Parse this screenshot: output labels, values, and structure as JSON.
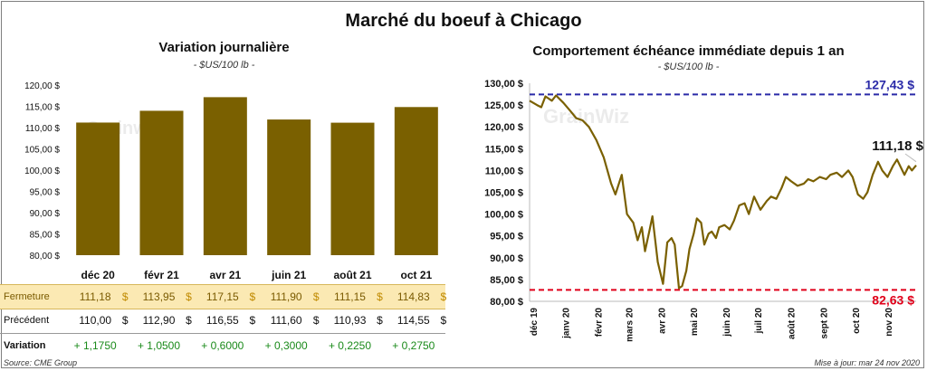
{
  "title": "Marché du boeuf à Chicago",
  "colors": {
    "bar": "#7a6000",
    "line": "#7a6000",
    "high": "#2a2aa8",
    "low": "#e0001a",
    "green": "#1a8a1a"
  },
  "left": {
    "subtitle": "Variation journalière",
    "unit": "- $US/100 lb -",
    "watermark": "Grainwiz",
    "table": {
      "fermeture_label": "Fermeture",
      "precedent_label": "Précédent",
      "variation_label": "Variation",
      "currency": "$",
      "fermeture": [
        "111,18",
        "113,95",
        "117,15",
        "111,90",
        "111,15",
        "114,83"
      ],
      "precedent": [
        "110,00",
        "112,90",
        "116,55",
        "111,60",
        "110,93",
        "114,55"
      ],
      "variation": [
        "+ 1,1750",
        "+ 1,0500",
        "+ 0,6000",
        "+ 0,3000",
        "+ 0,2250",
        "+ 0,2750"
      ]
    }
  },
  "right": {
    "subtitle": "Comportement échéance immédiate depuis 1 an",
    "unit": "- $US/100 lb -",
    "watermark": "GrainWiz",
    "high_label": "127,43 $",
    "low_label": "82,63 $",
    "last_label": "111,18 $"
  },
  "source": "Source: CME Group",
  "updated": "Mise à jour: mar 24 nov 2020",
  "chart_data": [
    {
      "type": "bar",
      "title": "Variation journalière",
      "categories": [
        "déc 20",
        "févr 21",
        "avr 21",
        "juin 21",
        "août 21",
        "oct 21"
      ],
      "values": [
        111.18,
        113.95,
        117.15,
        111.9,
        111.15,
        114.83
      ],
      "ylim": [
        80,
        120
      ],
      "yticks": [
        "80,00 $",
        "85,00 $",
        "90,00 $",
        "95,00 $",
        "100,00 $",
        "105,00 $",
        "110,00 $",
        "115,00 $",
        "120,00 $"
      ],
      "grid": false
    },
    {
      "type": "line",
      "title": "Comportement échéance immédiate depuis 1 an",
      "ylim": [
        80,
        130
      ],
      "yticks": [
        "80,00 $",
        "85,00 $",
        "90,00 $",
        "95,00 $",
        "100,00 $",
        "105,00 $",
        "110,00 $",
        "115,00 $",
        "120,00 $",
        "125,00 $",
        "130,00 $"
      ],
      "xticks": [
        "déc 19",
        "janv 20",
        "févr 20",
        "mars 20",
        "avr 20",
        "mai 20",
        "juin 20",
        "juil 20",
        "août 20",
        "sept 20",
        "oct 20",
        "nov 20"
      ],
      "high": 127.43,
      "low": 82.63,
      "x": [
        "2019-11-25",
        "2019-12-02",
        "2019-12-06",
        "2019-12-10",
        "2019-12-16",
        "2019-12-20",
        "2019-12-27",
        "2020-01-03",
        "2020-01-08",
        "2020-01-14",
        "2020-01-20",
        "2020-01-27",
        "2020-02-03",
        "2020-02-10",
        "2020-02-14",
        "2020-02-20",
        "2020-02-25",
        "2020-03-02",
        "2020-03-06",
        "2020-03-10",
        "2020-03-13",
        "2020-03-17",
        "2020-03-20",
        "2020-03-25",
        "2020-03-30",
        "2020-04-03",
        "2020-04-07",
        "2020-04-10",
        "2020-04-14",
        "2020-04-17",
        "2020-04-21",
        "2020-04-24",
        "2020-04-28",
        "2020-05-01",
        "2020-05-05",
        "2020-05-08",
        "2020-05-12",
        "2020-05-15",
        "2020-05-19",
        "2020-05-22",
        "2020-05-27",
        "2020-06-01",
        "2020-06-05",
        "2020-06-10",
        "2020-06-15",
        "2020-06-19",
        "2020-06-24",
        "2020-06-30",
        "2020-07-06",
        "2020-07-10",
        "2020-07-15",
        "2020-07-20",
        "2020-07-24",
        "2020-07-29",
        "2020-08-04",
        "2020-08-10",
        "2020-08-14",
        "2020-08-19",
        "2020-08-25",
        "2020-08-31",
        "2020-09-04",
        "2020-09-10",
        "2020-09-15",
        "2020-09-21",
        "2020-09-25",
        "2020-09-30",
        "2020-10-05",
        "2020-10-09",
        "2020-10-14",
        "2020-10-19",
        "2020-10-23",
        "2020-10-28",
        "2020-11-02",
        "2020-11-06",
        "2020-11-10",
        "2020-11-13",
        "2020-11-17",
        "2020-11-20",
        "2020-11-24"
      ],
      "y": [
        126.0,
        125.0,
        124.5,
        127.0,
        126.0,
        127.2,
        125.5,
        123.5,
        122.0,
        121.5,
        120.0,
        117.0,
        113.0,
        107.0,
        104.5,
        109.0,
        100.0,
        98.0,
        94.0,
        97.0,
        91.5,
        96.0,
        99.5,
        89.0,
        84.0,
        93.5,
        94.5,
        93.0,
        83.0,
        83.5,
        87.0,
        92.0,
        95.5,
        99.0,
        98.0,
        93.0,
        95.5,
        96.0,
        94.5,
        97.0,
        97.5,
        96.5,
        98.5,
        102.0,
        102.5,
        100.0,
        104.0,
        101.0,
        103.0,
        104.0,
        103.5,
        106.0,
        108.5,
        107.5,
        106.5,
        107.0,
        108.0,
        107.5,
        108.5,
        108.0,
        109.0,
        109.5,
        108.5,
        110.0,
        108.5,
        104.5,
        103.5,
        105.0,
        109.0,
        112.0,
        110.0,
        108.5,
        111.0,
        112.5,
        110.5,
        109.0,
        111.0,
        110.0,
        111.18
      ]
    }
  ]
}
